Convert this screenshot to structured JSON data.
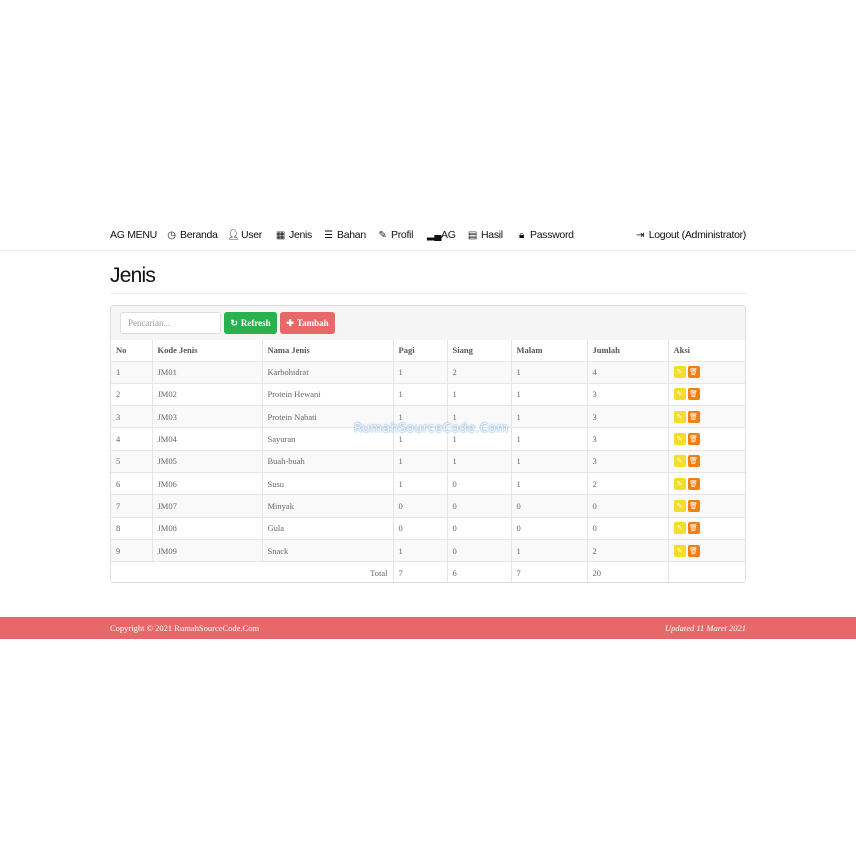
{
  "nav": {
    "brand": "AG MENU",
    "items": [
      {
        "label": "Beranda",
        "icon": "clock-icon"
      },
      {
        "label": "User",
        "icon": "user-icon"
      },
      {
        "label": "Jenis",
        "icon": "grid-icon"
      },
      {
        "label": "Bahan",
        "icon": "list-icon"
      },
      {
        "label": "Profil",
        "icon": "edit-icon"
      },
      {
        "label": "AG",
        "icon": "signal-icon"
      },
      {
        "label": "Hasil",
        "icon": "calendar-icon"
      },
      {
        "label": "Password",
        "icon": "lock-icon"
      }
    ],
    "logout": "Logout (Administrator)"
  },
  "page_title": "Jenis",
  "toolbar": {
    "search_placeholder": "Pencarian...",
    "refresh": "Refresh",
    "add": "Tambah"
  },
  "colors": {
    "refresh": "#28b14c",
    "add": "#e8686a",
    "edit": "#f5dc2a",
    "delete": "#f07f14",
    "footer": "#e8686a"
  },
  "table": {
    "headers": [
      "No",
      "Kode Jenis",
      "Nama Jenis",
      "Pagi",
      "Siang",
      "Malam",
      "Jumlah",
      "Aksi"
    ],
    "rows": [
      [
        "1",
        "JM01",
        "Karbohidrat",
        "1",
        "2",
        "1",
        "4"
      ],
      [
        "2",
        "JM02",
        "Protein Hewani",
        "1",
        "1",
        "1",
        "3"
      ],
      [
        "3",
        "JM03",
        "Protein Nabati",
        "1",
        "1",
        "1",
        "3"
      ],
      [
        "4",
        "JM04",
        "Sayuran",
        "1",
        "1",
        "1",
        "3"
      ],
      [
        "5",
        "JM05",
        "Buah-buah",
        "1",
        "1",
        "1",
        "3"
      ],
      [
        "6",
        "JM06",
        "Susu",
        "1",
        "0",
        "1",
        "2"
      ],
      [
        "7",
        "JM07",
        "Minyak",
        "0",
        "0",
        "0",
        "0"
      ],
      [
        "8",
        "JM08",
        "Gula",
        "0",
        "0",
        "0",
        "0"
      ],
      [
        "9",
        "JM09",
        "Snack",
        "1",
        "0",
        "1",
        "2"
      ]
    ],
    "total": {
      "label": "Total",
      "values": [
        "7",
        "6",
        "7",
        "20"
      ]
    }
  },
  "watermark": "RumahSourceCode.Com",
  "footer": {
    "copyright": "Copyright © 2021 RumahSourceCode.Com",
    "updated": "Updated 11 Maret 2021"
  }
}
